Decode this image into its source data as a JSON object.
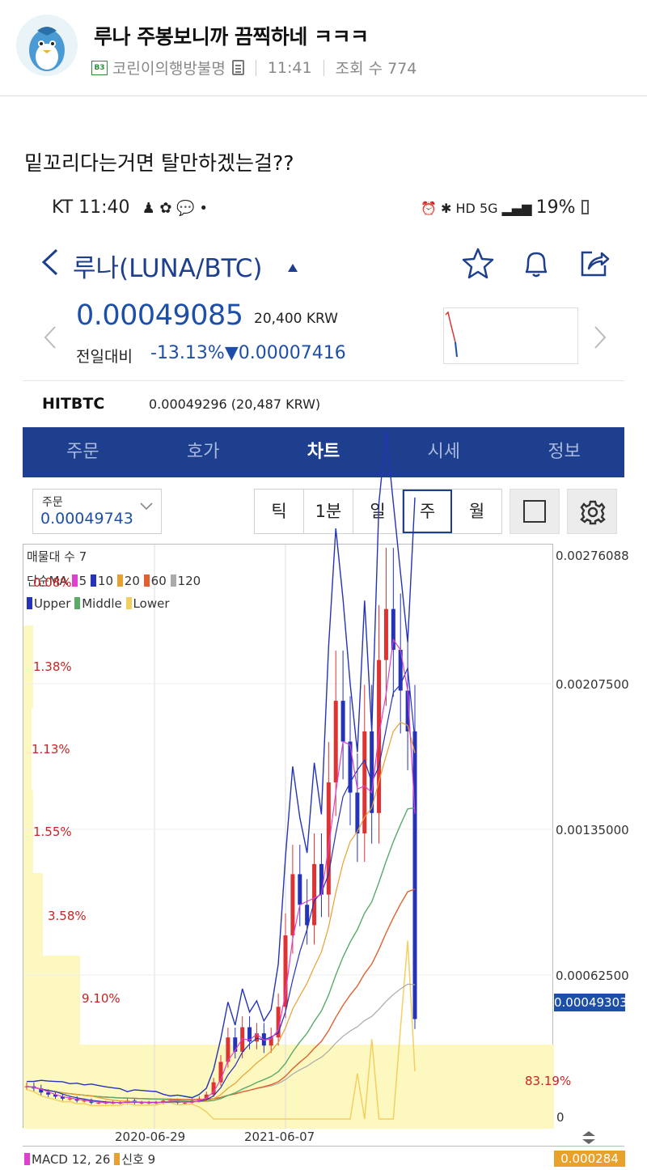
{
  "post": {
    "title": "루나 주봉보니까 끔찍하네 ㅋㅋㅋ",
    "level_badge": "B3",
    "author": "코린이의행방불명",
    "time": "11:41",
    "views": "조회 수 774",
    "body": "밑꼬리다는거면 탈만하겠는걸??"
  },
  "phone": {
    "status_left": "KT 11:40",
    "status_right": "19%",
    "coin_title": "루나(LUNA/BTC)",
    "price": "0.00049085",
    "price_krw": "20,400 KRW",
    "change_label": "전일대비",
    "change_value": "-13.13%▼0.00007416",
    "exchange_name": "HITBTC",
    "exchange_price": "0.00049296 (20,487 KRW)",
    "tabs": [
      {
        "label": "주문"
      },
      {
        "label": "호가"
      },
      {
        "label": "차트"
      },
      {
        "label": "시세"
      },
      {
        "label": "정보"
      }
    ],
    "order_label": "주문",
    "order_value": "0.00049743",
    "periods": [
      "틱",
      "1분",
      "일",
      "주",
      "월"
    ],
    "selected_period": "주",
    "colors": {
      "brand": "#1e3f8e",
      "price_blue": "#1e4fa8",
      "down": "#1e4fa8",
      "volume_profile": "#fdf8c0"
    }
  },
  "chart_data": {
    "type": "line",
    "legend": {
      "volume_profile": "매물대 수 7",
      "ma_title": "단순MA",
      "ma_periods": [
        "5",
        "10",
        "20",
        "60",
        "120"
      ],
      "bollinger": [
        "Upper",
        "Middle",
        "Lower"
      ],
      "macd": "MACD 12, 26",
      "signal": "신호 9"
    },
    "y_ticks": [
      "0.00276088",
      "0.00207500",
      "0.00135000",
      "0.00062500",
      "0"
    ],
    "current_price": "0.00049303",
    "macd_value": "0.000284",
    "x_ticks": [
      "2020-06-29",
      "2021-06-07"
    ],
    "volume_profile_pct": [
      "0.08%",
      "1.38%",
      "1.13%",
      "1.55%",
      "3.58%",
      "9.10%",
      "83.19%"
    ],
    "ylim": [
      0,
      0.0028
    ],
    "close_series": [
      0.00016,
      0.00015,
      0.00013,
      0.00012,
      0.00011,
      0.0001,
      0.0001,
      9e-05,
      9e-05,
      8e-05,
      8e-05,
      8e-05,
      8e-05,
      8e-05,
      9e-05,
      8e-05,
      8e-05,
      8e-05,
      8e-05,
      9e-05,
      9e-05,
      8e-05,
      8e-05,
      9e-05,
      0.0001,
      0.00012,
      0.00018,
      0.00028,
      0.0004,
      0.00033,
      0.00045,
      0.00038,
      0.00042,
      0.00036,
      0.0004,
      0.00055,
      0.0009,
      0.0012,
      0.00105,
      0.00095,
      0.00125,
      0.0011,
      0.00165,
      0.00205,
      0.00185,
      0.0016,
      0.0014,
      0.0019,
      0.0015,
      0.00225,
      0.0025,
      0.0023,
      0.0021,
      0.0019,
      0.00049
    ]
  }
}
